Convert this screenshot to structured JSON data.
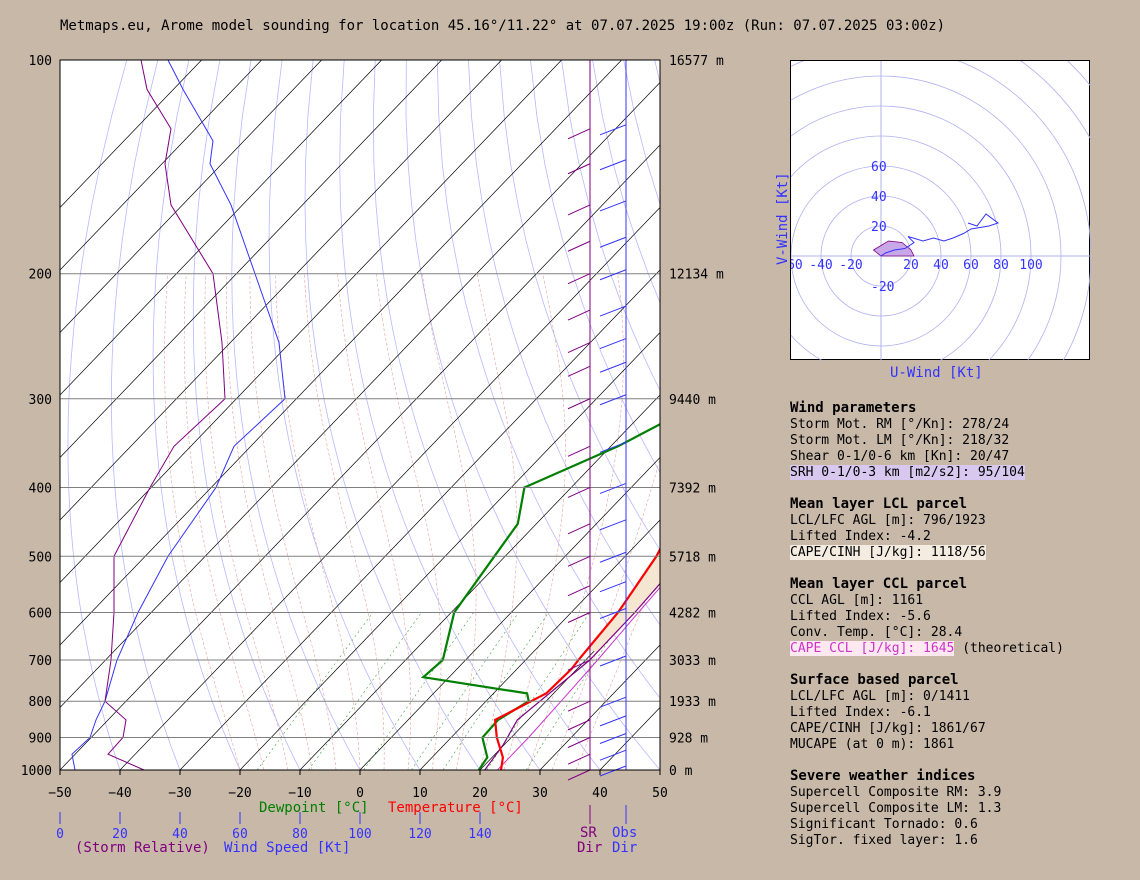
{
  "title": "Metmaps.eu, Arome model sounding for location 45.16°/11.22° at 07.07.2025 19:00z (Run: 07.07.2025 03:00z)",
  "colors": {
    "background": "#c8b8a8",
    "temperature": "#ff0000",
    "dewpoint": "#008000",
    "wind_speed": "#3333ff",
    "storm_relative": "#800080",
    "parcel": "#800080",
    "ccl_parcel": "#cc33cc",
    "cape_fill": "#f5e6d2"
  },
  "chart_data": [
    {
      "type": "line",
      "name": "skew-t",
      "x_axis_temperature": {
        "ticks": [
          "−50",
          "−40",
          "−30",
          "−20",
          "−10",
          "0",
          "10",
          "20",
          "30",
          "40",
          "50"
        ],
        "range": [
          -50,
          50
        ],
        "dewpoint_label": "Dewpoint [°C]",
        "temperature_label": "Temperature [°C]"
      },
      "x_axis_wind": {
        "ticks": [
          "0",
          "20",
          "40",
          "60",
          "80",
          "100",
          "120",
          "140"
        ],
        "storm_relative_label": "(Storm Relative)",
        "wind_speed_label": "Wind Speed [Kt]",
        "sr_label": "SR",
        "sr_dir_label": "Dir",
        "obs_label": "Obs",
        "obs_dir_label": "Dir"
      },
      "pressure_levels": [
        {
          "p": 100,
          "label": "100",
          "height": "16577 m"
        },
        {
          "p": 200,
          "label": "200",
          "height": "12134 m"
        },
        {
          "p": 300,
          "label": "300",
          "height": "9440 m"
        },
        {
          "p": 400,
          "label": "400",
          "height": "7392 m"
        },
        {
          "p": 500,
          "label": "500",
          "height": "5718 m"
        },
        {
          "p": 600,
          "label": "600",
          "height": "4282 m"
        },
        {
          "p": 700,
          "label": "700",
          "height": "3033 m"
        },
        {
          "p": 800,
          "label": "800",
          "height": "1933 m"
        },
        {
          "p": 900,
          "label": "900",
          "height": "928 m"
        },
        {
          "p": 1000,
          "label": "1000",
          "height": "0 m"
        }
      ],
      "series": [
        {
          "name": "Temperature",
          "points": [
            [
              1000,
              23.5
            ],
            [
              960,
              21.8
            ],
            [
              900,
              17.6
            ],
            [
              850,
              14.5
            ],
            [
              800,
              17.5
            ],
            [
              780,
              18.8
            ],
            [
              720,
              19.1
            ],
            [
              700,
              18.8
            ],
            [
              600,
              17.8
            ],
            [
              500,
              15.2
            ],
            [
              450,
              12.8
            ],
            [
              400,
              13.1
            ],
            [
              350,
              11.9
            ],
            [
              300,
              11.9
            ],
            [
              250,
              15.1
            ],
            [
              200,
              21.2
            ],
            [
              160,
              28.5
            ],
            [
              130,
              36.0
            ],
            [
              100,
              50.0
            ]
          ]
        },
        {
          "name": "Dewpoint",
          "points": [
            [
              1000,
              19.8
            ],
            [
              960,
              19.2
            ],
            [
              900,
              15.2
            ],
            [
              850,
              15.0
            ],
            [
              800,
              17.1
            ],
            [
              780,
              15.6
            ],
            [
              740,
              -4.3
            ],
            [
              700,
              -3.8
            ],
            [
              600,
              -9.5
            ],
            [
              500,
              -11.8
            ],
            [
              450,
              -13.1
            ],
            [
              400,
              -17.8
            ],
            [
              350,
              -8.8
            ],
            [
              300,
              -1.3
            ],
            [
              250,
              -0.5
            ],
            [
              200,
              2.8
            ],
            [
              160,
              8.5
            ],
            [
              130,
              18.2
            ],
            [
              100,
              35.5
            ]
          ]
        },
        {
          "name": "Parcel",
          "points": [
            [
              1000,
              20.8
            ],
            [
              920,
              19.8
            ],
            [
              850,
              18.2
            ],
            [
              700,
              20.7
            ],
            [
              600,
              20.6
            ],
            [
              500,
              19.8
            ],
            [
              400,
              18.8
            ],
            [
              300,
              15.1
            ],
            [
              250,
              14.1
            ],
            [
              200,
              13.1
            ],
            [
              150,
              14.1
            ],
            [
              120,
              16.3
            ],
            [
              100,
              20.8
            ]
          ]
        },
        {
          "name": "CCL parcel",
          "points": [
            [
              1000,
              22.9
            ],
            [
              900,
              22.9
            ],
            [
              800,
              22.5
            ],
            [
              700,
              22.0
            ],
            [
              600,
              21.2
            ],
            [
              500,
              20.3
            ],
            [
              400,
              19.6
            ],
            [
              300,
              17.5
            ],
            [
              250,
              16.9
            ],
            [
              200,
              17.2
            ],
            [
              150,
              19.6
            ],
            [
              120,
              21.6
            ],
            [
              100,
              24.7
            ]
          ]
        },
        {
          "name": "Wind Speed",
          "points": [
            [
              1000,
              5
            ],
            [
              950,
              4
            ],
            [
              900,
              10
            ],
            [
              850,
              12
            ],
            [
              800,
              15
            ],
            [
              700,
              19
            ],
            [
              600,
              26
            ],
            [
              500,
              36
            ],
            [
              400,
              52
            ],
            [
              350,
              58
            ],
            [
              300,
              75
            ],
            [
              250,
              73
            ],
            [
              200,
              65
            ],
            [
              160,
              57
            ],
            [
              140,
              50
            ],
            [
              130,
              51
            ],
            [
              110,
              41
            ],
            [
              100,
              36
            ]
          ]
        },
        {
          "name": "Storm Relative Wind Speed",
          "points": [
            [
              1000,
              28
            ],
            [
              950,
              16
            ],
            [
              900,
              21
            ],
            [
              850,
              22
            ],
            [
              800,
              15
            ],
            [
              700,
              17
            ],
            [
              600,
              18
            ],
            [
              500,
              18
            ],
            [
              400,
              30
            ],
            [
              350,
              38
            ],
            [
              300,
              55
            ],
            [
              250,
              54
            ],
            [
              200,
              51
            ],
            [
              160,
              37
            ],
            [
              140,
              35
            ],
            [
              125,
              37
            ],
            [
              110,
              29
            ],
            [
              100,
              27
            ]
          ]
        }
      ]
    },
    {
      "type": "line",
      "name": "hodograph",
      "xlabel": "U-Wind [Kt]",
      "ylabel": "V-Wind [Kt]",
      "x_ticks": [
        "-60",
        "-40",
        "-20",
        "20",
        "40",
        "60",
        "80",
        "100"
      ],
      "y_ticks": [
        "60",
        "40",
        "20",
        "-20"
      ],
      "points": [
        [
          0,
          0
        ],
        [
          3,
          2
        ],
        [
          9,
          4
        ],
        [
          16,
          5
        ],
        [
          22,
          9
        ],
        [
          18,
          13
        ],
        [
          28,
          10
        ],
        [
          35,
          12
        ],
        [
          42,
          10
        ],
        [
          48,
          12
        ],
        [
          55,
          15
        ],
        [
          60,
          18
        ],
        [
          72,
          20
        ],
        [
          78,
          22
        ],
        [
          70,
          28
        ],
        [
          64,
          20
        ],
        [
          58,
          22
        ]
      ],
      "srh_fill": [
        [
          -5,
          4
        ],
        [
          5,
          10
        ],
        [
          14,
          9
        ],
        [
          20,
          4
        ],
        [
          22,
          0
        ],
        [
          0,
          0
        ]
      ]
    }
  ],
  "wind_barbs": {
    "sr": [
      [
        1000,
        1
      ],
      [
        950,
        1
      ],
      [
        900,
        1
      ],
      [
        850,
        1
      ],
      [
        800,
        1
      ],
      [
        700,
        1
      ],
      [
        600,
        1
      ],
      [
        550,
        1
      ],
      [
        500,
        1
      ],
      [
        450,
        1
      ],
      [
        400,
        1
      ],
      [
        350,
        1
      ],
      [
        300,
        1
      ],
      [
        270,
        1
      ],
      [
        250,
        1
      ],
      [
        225,
        1
      ],
      [
        200,
        1
      ],
      [
        180,
        1
      ],
      [
        160,
        1
      ],
      [
        140,
        1
      ],
      [
        125,
        1
      ]
    ],
    "obs": [
      [
        1000,
        1
      ],
      [
        950,
        1
      ],
      [
        900,
        1
      ],
      [
        850,
        1
      ],
      [
        800,
        1
      ],
      [
        700,
        1
      ],
      [
        600,
        1
      ],
      [
        550,
        1
      ],
      [
        500,
        1
      ],
      [
        450,
        1
      ],
      [
        400,
        1
      ],
      [
        350,
        1
      ],
      [
        300,
        1
      ],
      [
        270,
        1
      ],
      [
        250,
        1
      ],
      [
        225,
        1
      ],
      [
        200,
        1
      ],
      [
        180,
        1
      ],
      [
        160,
        1
      ],
      [
        140,
        1
      ],
      [
        125,
        1
      ]
    ]
  },
  "wind_parameters": {
    "heading": "Wind parameters",
    "rm": "Storm Mot. RM [°/Kn]: 278/24",
    "lm": "Storm Mot. LM [°/Kn]: 218/32",
    "shear": "Shear 0-1/0-6 km [Kn]: 20/47",
    "srh": "SRH 0-1/0-3 km [m2/s2]: 95/104"
  },
  "lcl_parcel": {
    "heading": "Mean layer LCL parcel",
    "lcl_lfc": "LCL/LFC AGL [m]: 796/1923",
    "li": "Lifted Index: -4.2",
    "cape": "CAPE/CINH [J/kg]: 1118/56"
  },
  "ccl_parcel": {
    "heading": "Mean layer CCL parcel",
    "ccl": "CCL AGL [m]: 1161",
    "li": "Lifted Index: -5.6",
    "conv": "Conv. Temp. [°C]: 28.4",
    "cape": "CAPE CCL [J/kg]: 1645",
    "note": " (theoretical)"
  },
  "surface_parcel": {
    "heading": "Surface based parcel",
    "lcl_lfc": "LCL/LFC AGL [m]: 0/1411",
    "li": "Lifted Index: -6.1",
    "cape": "CAPE/CINH [J/kg]: 1861/67",
    "mucape": "MUCAPE (at 0 m): 1861"
  },
  "severe": {
    "heading": "Severe weather indices",
    "scp_rm": "Supercell Composite RM: 3.9",
    "scp_lm": "Supercell Composite LM: 1.3",
    "stp": "Significant Tornado: 0.6",
    "stp_fixed": "SigTor. fixed layer: 1.6"
  }
}
